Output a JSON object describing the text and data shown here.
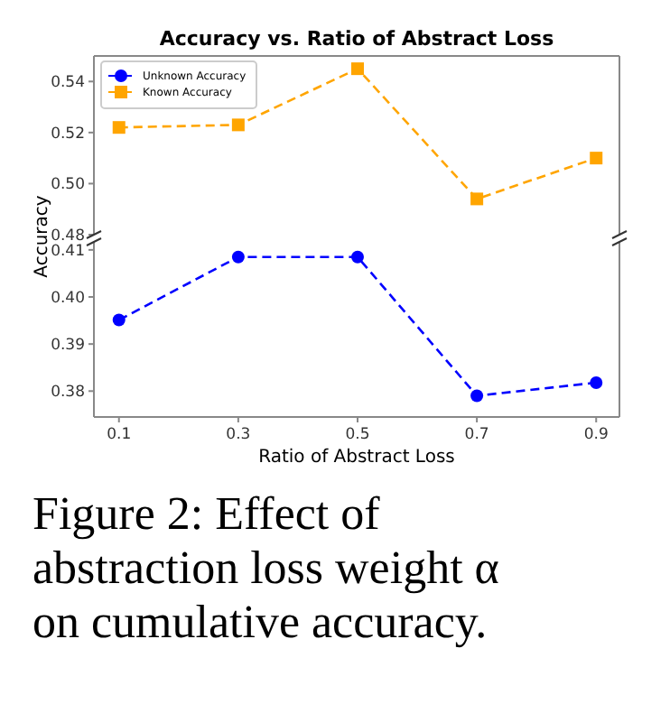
{
  "chart_data": [
    {
      "type": "line",
      "title": "Accuracy vs. Ratio of Abstract Loss",
      "x": [
        0.1,
        0.3,
        0.5,
        0.7,
        0.9
      ],
      "xlim": [
        0.058,
        0.939
      ],
      "xticks": [
        0.1,
        0.3,
        0.5,
        0.7,
        0.9
      ],
      "ylim": [
        0.48,
        0.55
      ],
      "yticks": [
        0.48,
        {
          "value": 0.5,
          "label": "0.50"
        },
        0.52,
        0.54
      ],
      "tick_labels": "y",
      "marker": "square",
      "line_style": "dashed",
      "legend": "top left",
      "series": [
        {
          "name": "Known Accuracy",
          "color": "#ffa500",
          "values": [
            0.522,
            0.523,
            0.545,
            0.494,
            0.51
          ]
        }
      ]
    },
    {
      "type": "line",
      "xlabel": "Ratio of Abstract Loss",
      "ylabel": "Accuracy",
      "x": [
        0.1,
        0.3,
        0.5,
        0.7,
        0.9
      ],
      "xlim": [
        0.058,
        0.939
      ],
      "xticks": [
        0.1,
        0.3,
        0.5,
        0.7,
        0.9
      ],
      "ylim": [
        0.3745,
        0.4117
      ],
      "yticks": [
        {
          "value": 0.38,
          "label": "0.38"
        },
        {
          "value": 0.39,
          "label": "0.39"
        },
        {
          "value": 0.4,
          "label": "0.40"
        },
        {
          "value": 0.41,
          "label": "0.41"
        }
      ],
      "marker": "circle",
      "line_style": "dashed",
      "series": [
        {
          "name": "Unknown Accuracy",
          "color": "#0000ff",
          "values": [
            0.3951,
            0.4085,
            0.4085,
            0.379,
            0.3818
          ]
        }
      ],
      "annotations": [
        "Figure 2: Effect of abstraction loss weight α on cumulative accuracy."
      ]
    }
  ]
}
